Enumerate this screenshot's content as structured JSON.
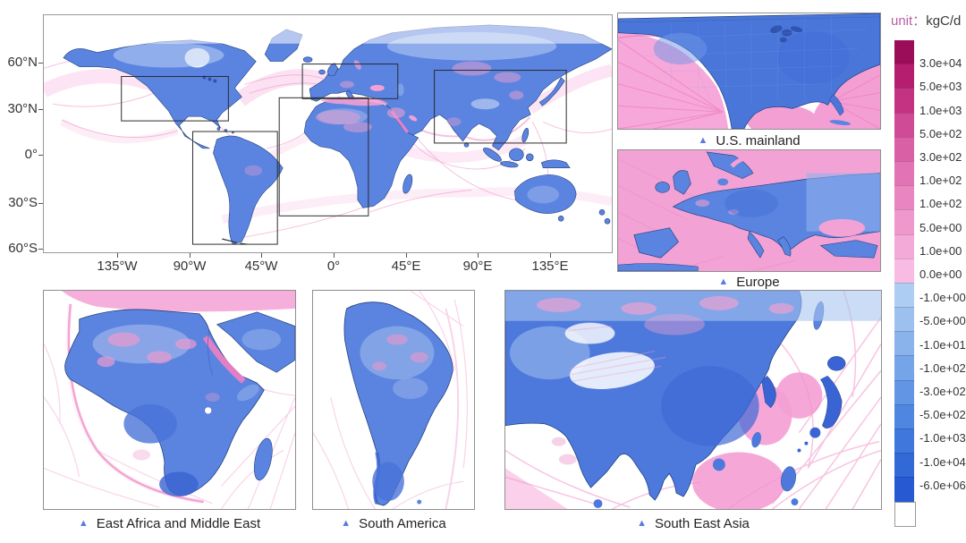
{
  "figure": {
    "unit_prefix": "unit：",
    "unit_value": "kgC/d"
  },
  "main_map": {
    "x_ticks": [
      "135°W",
      "90°W",
      "45°W",
      "0°",
      "45°E",
      "90°E",
      "135°E"
    ],
    "y_ticks": [
      "60°N",
      "30°N",
      "0°",
      "30°S",
      "60°S"
    ]
  },
  "panels": {
    "us": {
      "label": "U.S. mainland"
    },
    "europe": {
      "label": "Europe"
    },
    "africa": {
      "label": "East Africa and Middle East"
    },
    "samerica": {
      "label": "South America"
    },
    "seasia": {
      "label": "South East Asia"
    }
  },
  "marker_glyph": "▲",
  "colorbar": {
    "labels": [
      "3.0e+04",
      "5.0e+03",
      "1.0e+03",
      "5.0e+02",
      "3.0e+02",
      "1.0e+02",
      "1.0e+02",
      "5.0e+00",
      "1.0e+00",
      "0.0e+00",
      "-1.0e+00",
      "-5.0e+00",
      "-1.0e+01",
      "-1.0e+02",
      "-3.0e+02",
      "-5.0e+02",
      "-1.0e+03",
      "-1.0e+04",
      "-6.0e+06"
    ],
    "colors": [
      "#9b0d59",
      "#b51e6e",
      "#c43381",
      "#d04b95",
      "#da60a6",
      "#e273b4",
      "#e986c2",
      "#ef98ce",
      "#f4aad9",
      "#f8bce3",
      "#aecdf2",
      "#9cc1ef",
      "#8ab3ec",
      "#76a4e8",
      "#6295e4",
      "#4f86e0",
      "#4077dc",
      "#3368d7",
      "#2659d2",
      "#ffffff"
    ],
    "segment_height": 26.2
  },
  "colors": {
    "marker": "#5b79e3",
    "unit_prefix": "#bb5fa0",
    "land_blue": "#5b84e0",
    "source_pink": "#f29fd3"
  }
}
